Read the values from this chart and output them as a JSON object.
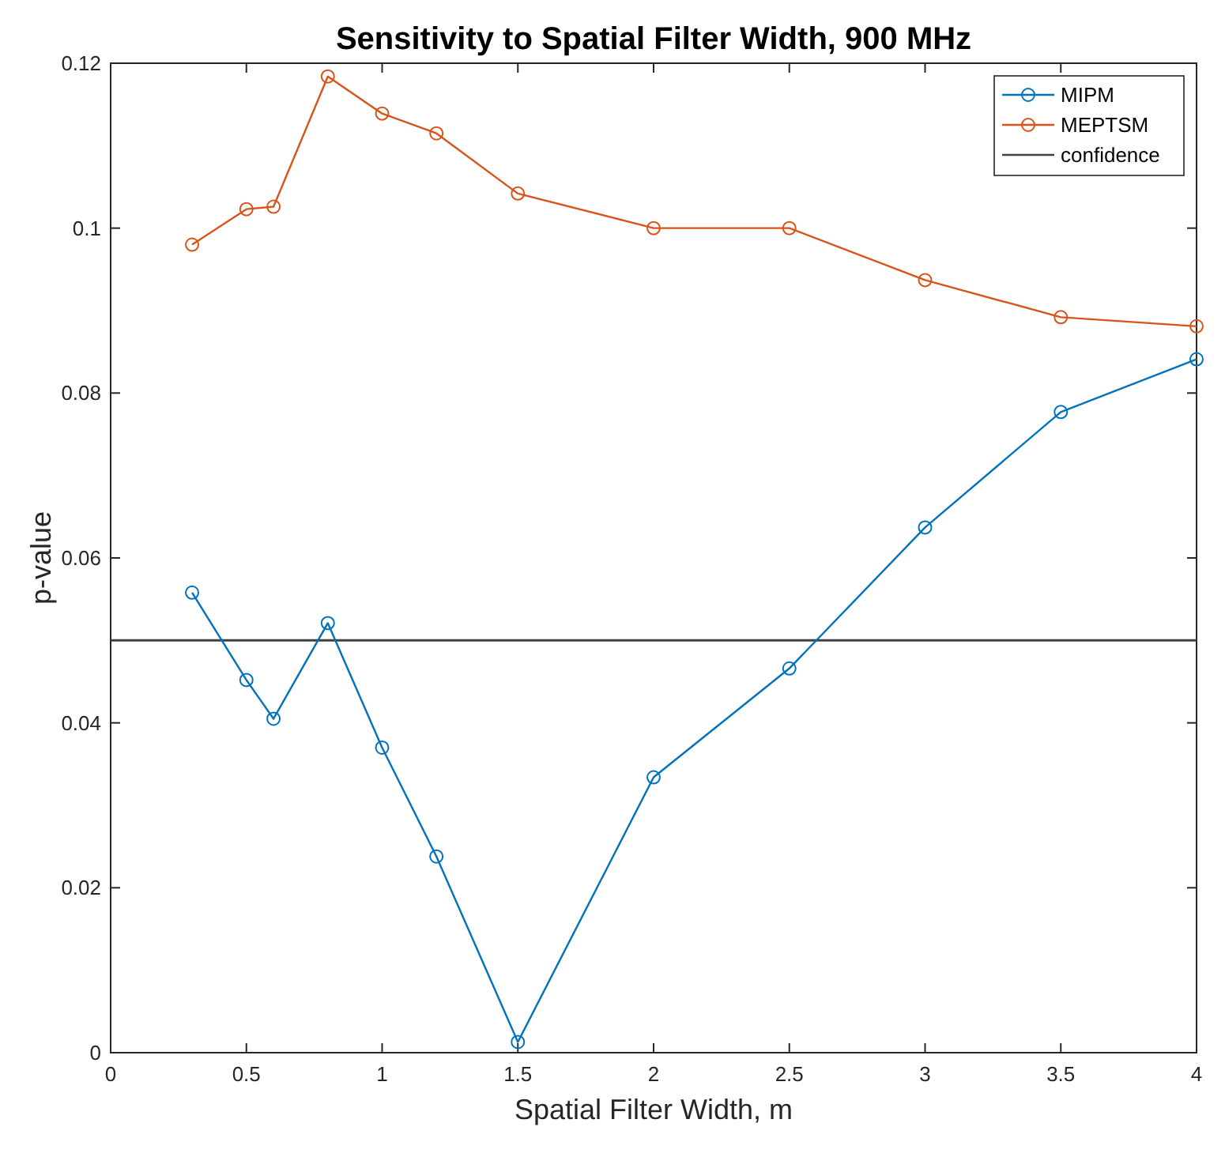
{
  "chart_data": {
    "type": "line",
    "title": "Sensitivity to Spatial Filter Width, 900 MHz",
    "xlabel": "Spatial Filter Width, m",
    "ylabel": "p-value",
    "x": [
      0.3,
      0.5,
      0.6,
      0.8,
      1,
      1.2,
      1.5,
      2,
      2.5,
      3,
      3.5,
      4
    ],
    "series": [
      {
        "name": "MIPM",
        "color": "#0072bd",
        "values": [
          0.0558,
          0.0452,
          0.0405,
          0.0521,
          0.037,
          0.0238,
          0.0013,
          0.0334,
          0.0466,
          0.0637,
          0.0777,
          0.0841
        ]
      },
      {
        "name": "MEPTSM",
        "color": "#d95319",
        "values": [
          0.098,
          0.1023,
          0.1026,
          0.1184,
          0.1139,
          0.1115,
          0.1042,
          0.1,
          0.1,
          0.0937,
          0.0892,
          0.0881
        ]
      }
    ],
    "ref_lines": [
      {
        "axis": "y",
        "value": 0.05,
        "label": "confidence",
        "color": "#404040",
        "line_style": "solid"
      }
    ],
    "xlim": [
      0,
      4
    ],
    "xticks": [
      0,
      0.5,
      1,
      1.5,
      2,
      2.5,
      3,
      3.5,
      4
    ],
    "ylim": [
      0,
      0.12
    ],
    "yticks": [
      0,
      0.02,
      0.04,
      0.06,
      0.08,
      0.1,
      0.12
    ],
    "legend": "top right",
    "marker": "circle",
    "line_style": "solid"
  }
}
